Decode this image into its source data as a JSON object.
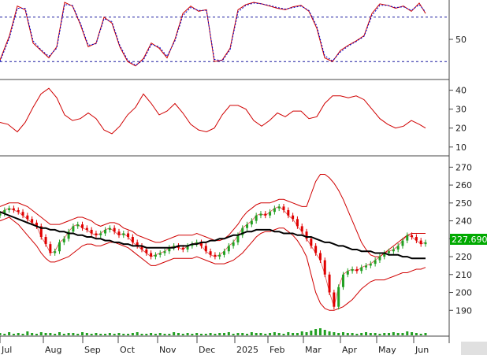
{
  "colors": {
    "background": "#ffffff",
    "candle_up": "#22a022",
    "candle_down": "#e00000",
    "bollinger": "#d00000",
    "moving_average": "#000000",
    "stochastic_k": "#d00000",
    "stochastic_d": "#0000cc",
    "adx": "#d00000",
    "volume": "#22a022",
    "last_price_bg": "#00aa00",
    "axis": "#222222"
  },
  "chart_data": [
    {
      "type": "line",
      "panel": "stochastic",
      "yticks": [
        "50"
      ],
      "ylim": [
        0,
        100
      ],
      "levels": [
        20,
        80
      ],
      "series": [
        {
          "color_key": "stochastic_k",
          "x": [
            0,
            12,
            22,
            32,
            42,
            52,
            62,
            72,
            82,
            92,
            102,
            112,
            122,
            132,
            142,
            152,
            162,
            172,
            182,
            192,
            202,
            212,
            222,
            232,
            242,
            252,
            262,
            272,
            282,
            292,
            302,
            312,
            322,
            332,
            342,
            352,
            362,
            372,
            382,
            392,
            402,
            412,
            422,
            432,
            442,
            452,
            462,
            472,
            482,
            492,
            502,
            512,
            522,
            532,
            540
          ],
          "y": [
            22,
            55,
            95,
            90,
            45,
            35,
            25,
            40,
            100,
            95,
            70,
            40,
            45,
            80,
            72,
            40,
            20,
            14,
            24,
            45,
            38,
            25,
            50,
            85,
            95,
            88,
            90,
            20,
            22,
            38,
            90,
            97,
            100,
            98,
            95,
            92,
            90,
            94,
            96,
            88,
            65,
            25,
            20,
            35,
            42,
            48,
            55,
            85,
            98,
            96,
            92,
            95,
            88,
            99,
            85
          ]
        },
        {
          "color_key": "stochastic_d",
          "x": [
            0,
            12,
            22,
            32,
            42,
            52,
            62,
            72,
            82,
            92,
            102,
            112,
            122,
            132,
            142,
            152,
            162,
            172,
            182,
            192,
            202,
            212,
            222,
            232,
            242,
            252,
            262,
            272,
            282,
            292,
            302,
            312,
            322,
            332,
            342,
            352,
            362,
            372,
            382,
            392,
            402,
            412,
            422,
            432,
            442,
            452,
            462,
            472,
            482,
            492,
            502,
            512,
            522,
            532,
            540
          ],
          "y": [
            20,
            52,
            92,
            92,
            48,
            36,
            27,
            38,
            97,
            96,
            72,
            42,
            44,
            78,
            74,
            42,
            22,
            15,
            22,
            43,
            40,
            27,
            48,
            82,
            93,
            89,
            89,
            23,
            21,
            36,
            87,
            96,
            99,
            98,
            96,
            93,
            91,
            93,
            95,
            89,
            68,
            28,
            21,
            33,
            41,
            47,
            54,
            82,
            96,
            96,
            93,
            94,
            89,
            97,
            87
          ]
        }
      ]
    },
    {
      "type": "line",
      "panel": "adx",
      "yticks": [
        "40",
        "30",
        "20",
        "10"
      ],
      "ylim": [
        7,
        44
      ],
      "series": [
        {
          "color_key": "adx",
          "x": [
            0,
            10,
            22,
            32,
            42,
            52,
            62,
            72,
            82,
            92,
            102,
            112,
            122,
            132,
            142,
            152,
            162,
            172,
            182,
            192,
            202,
            212,
            222,
            232,
            242,
            252,
            262,
            272,
            282,
            292,
            302,
            312,
            322,
            332,
            342,
            352,
            362,
            372,
            382,
            392,
            402,
            412,
            422,
            432,
            442,
            452,
            462,
            472,
            482,
            492,
            502,
            512,
            522,
            532,
            540
          ],
          "y": [
            23,
            22,
            18,
            23,
            31,
            38,
            41,
            36,
            27,
            24,
            25,
            28,
            25,
            19,
            17,
            21,
            27,
            31,
            38,
            33,
            27,
            29,
            33,
            28,
            22,
            19,
            18,
            20,
            27,
            32,
            32,
            30,
            24,
            21,
            24,
            28,
            26,
            29,
            29,
            25,
            26,
            33,
            37,
            37,
            36,
            37,
            35,
            30,
            25,
            22,
            20,
            21,
            24,
            22,
            20
          ]
        }
      ]
    },
    {
      "type": "candlestick",
      "panel": "price",
      "yticks": [
        "270",
        "260",
        "250",
        "240",
        "230",
        "220",
        "210",
        "200",
        "190"
      ],
      "ylim": [
        180,
        275
      ],
      "x_tick_labels": [
        "Jul",
        "Aug",
        "Sep",
        "Oct",
        "Nov",
        "Dec",
        "2025",
        "Feb",
        "Mar",
        "Apr",
        "May",
        "Jun"
      ],
      "last_price_label": "227.6900",
      "close": [
        244,
        246,
        247,
        246,
        245,
        243,
        241,
        239,
        237,
        231,
        227,
        222,
        223,
        228,
        230,
        234,
        237,
        238,
        236,
        235,
        233,
        232,
        233,
        235,
        236,
        234,
        232,
        233,
        231,
        228,
        226,
        224,
        222,
        220,
        221,
        222,
        223,
        225,
        226,
        225,
        224,
        226,
        227,
        228,
        226,
        223,
        221,
        220,
        221,
        223,
        226,
        228,
        232,
        236,
        238,
        240,
        243,
        244,
        243,
        245,
        247,
        248,
        246,
        243,
        241,
        237,
        234,
        230,
        226,
        222,
        218,
        210,
        200,
        192,
        203,
        210,
        212,
        213,
        212,
        214,
        215,
        216,
        218,
        220,
        222,
        223,
        224,
        226,
        229,
        232,
        231,
        229,
        227,
        228
      ],
      "ma": [
        245,
        244,
        243,
        242,
        241,
        240,
        239,
        238,
        237,
        236,
        236,
        235,
        235,
        234,
        234,
        233,
        233,
        232,
        232,
        231,
        231,
        230,
        230,
        229,
        229,
        228,
        228,
        227,
        227,
        226,
        226,
        226,
        225,
        225,
        225,
        225,
        225,
        225,
        225,
        226,
        226,
        226,
        227,
        227,
        228,
        228,
        229,
        229,
        230,
        230,
        231,
        232,
        232,
        233,
        234,
        234,
        235,
        235,
        235,
        235,
        234,
        234,
        233,
        233,
        233,
        232,
        232,
        231,
        231,
        230,
        229,
        228,
        228,
        227,
        226,
        226,
        225,
        224,
        224,
        223,
        223,
        223,
        222,
        222,
        222,
        221,
        221,
        221,
        220,
        220,
        219,
        219,
        219,
        219
      ],
      "bb_upper": [
        248,
        249,
        250,
        250,
        250,
        249,
        248,
        246,
        244,
        242,
        240,
        238,
        238,
        238,
        239,
        240,
        241,
        242,
        242,
        241,
        240,
        238,
        237,
        238,
        239,
        239,
        238,
        236,
        235,
        234,
        232,
        231,
        230,
        229,
        228,
        228,
        229,
        230,
        231,
        232,
        232,
        232,
        232,
        233,
        232,
        231,
        230,
        229,
        229,
        230,
        232,
        235,
        238,
        242,
        245,
        247,
        249,
        250,
        250,
        250,
        251,
        252,
        252,
        251,
        250,
        249,
        248,
        248,
        255,
        262,
        266,
        266,
        264,
        261,
        257,
        252,
        246,
        240,
        234,
        228,
        224,
        221,
        220,
        220,
        222,
        224,
        226,
        228,
        230,
        232,
        233,
        233,
        233,
        233
      ],
      "bb_lower": [
        240,
        241,
        242,
        240,
        238,
        235,
        232,
        229,
        226,
        222,
        219,
        217,
        217,
        218,
        219,
        220,
        222,
        224,
        226,
        227,
        227,
        226,
        226,
        227,
        228,
        228,
        227,
        226,
        225,
        223,
        221,
        219,
        217,
        215,
        215,
        216,
        217,
        218,
        219,
        219,
        219,
        219,
        219,
        220,
        219,
        218,
        217,
        216,
        216,
        216,
        217,
        218,
        220,
        222,
        225,
        228,
        231,
        233,
        234,
        234,
        235,
        236,
        236,
        234,
        232,
        229,
        225,
        220,
        210,
        200,
        194,
        191,
        190,
        190,
        191,
        192,
        194,
        196,
        199,
        202,
        204,
        206,
        207,
        207,
        207,
        208,
        209,
        210,
        211,
        211,
        212,
        213,
        213,
        214
      ],
      "volume": [
        3,
        2,
        4,
        2,
        3,
        2,
        5,
        3,
        2,
        4,
        3,
        3,
        2,
        4,
        2,
        3,
        3,
        2,
        4,
        3,
        2,
        3,
        2,
        2,
        3,
        2,
        3,
        2,
        2,
        3,
        4,
        2,
        2,
        3,
        2,
        3,
        2,
        2,
        4,
        3,
        2,
        3,
        2,
        3,
        2,
        2,
        3,
        2,
        3,
        3,
        4,
        2,
        3,
        3,
        2,
        4,
        3,
        3,
        2,
        3,
        4,
        3,
        2,
        4,
        3,
        3,
        5,
        4,
        6,
        8,
        9,
        7,
        5,
        4,
        3,
        4,
        3,
        3,
        2,
        3,
        4,
        3,
        3,
        2,
        3,
        3,
        4,
        3,
        3,
        5,
        4,
        3,
        2,
        3
      ]
    }
  ]
}
